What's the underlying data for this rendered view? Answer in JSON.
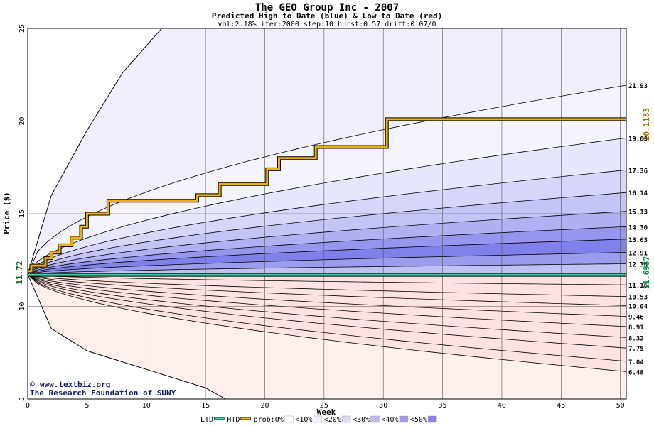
{
  "chart_data": {
    "type": "area",
    "title": "The GEO Group Inc - 2007",
    "subtitle": "Predicted High to Date (blue) &  Low to Date (red)",
    "params": "vol:2.18% iter:2000 step:10 hurst:0.57 drift:0.07/0",
    "xlabel": "Week",
    "ylabel": "Price ($)",
    "xlim": [
      0,
      50.5
    ],
    "ylim": [
      5,
      25
    ],
    "x_ticks": [
      "0",
      "5",
      "10",
      "15",
      "20",
      "25",
      "30",
      "35",
      "40",
      "45",
      "50"
    ],
    "y_ticks": [
      "5",
      "10",
      "15",
      "20",
      "25"
    ],
    "grid": true,
    "start_price": "11.72",
    "htd_final": "20.1183",
    "ltd_final": "11.6987",
    "credit_site": "www.textbiz.org",
    "credit_org": "The Research Foundation of SUNY",
    "upper_bands": [
      {
        "label": "21.93",
        "end": 21.93,
        "k": 0.9,
        "color": "#f4f4ff"
      },
      {
        "label": "19.09",
        "end": 19.09,
        "k": 1.0,
        "color": "#e6e6fc"
      },
      {
        "label": "17.36",
        "end": 17.36,
        "k": 1.0,
        "color": "#d6d6fa"
      },
      {
        "label": "16.14",
        "end": 16.14,
        "k": 1.0,
        "color": "#c4c4f6"
      },
      {
        "label": "15.13",
        "end": 15.13,
        "k": 1.0,
        "color": "#b0b0f2"
      },
      {
        "label": "14.30",
        "end": 14.3,
        "k": 1.0,
        "color": "#9696ee"
      },
      {
        "label": "13.63",
        "end": 13.63,
        "k": 1.0,
        "color": "#8080ea"
      },
      {
        "label": "12.91",
        "end": 12.91,
        "k": 1.0,
        "color": "#9c9cee"
      },
      {
        "label": "12.30",
        "end": 12.3,
        "k": 1.0,
        "color": "#c0c0f4"
      }
    ],
    "lower_bands": [
      {
        "label": "11.16",
        "end": 11.16,
        "k": 1.0,
        "color": "#ffe8e8"
      },
      {
        "label": "10.53",
        "end": 10.53,
        "k": 1.0,
        "color": "#ffd6d6"
      },
      {
        "label": "10.04",
        "end": 10.04,
        "k": 1.0,
        "color": "#ffc4c4"
      },
      {
        "label": "9.46",
        "end": 9.46,
        "k": 1.0,
        "color": "#ffb0b0"
      },
      {
        "label": "8.91",
        "end": 8.91,
        "k": 1.0,
        "color": "#ff9696"
      },
      {
        "label": "8.32",
        "end": 8.32,
        "k": 1.0,
        "color": "#ff8080"
      },
      {
        "label": "7.75",
        "end": 7.75,
        "k": 1.0,
        "color": "#ffa4a4"
      },
      {
        "label": "7.04",
        "end": 7.04,
        "k": 1.0,
        "color": "#ffc6c6"
      },
      {
        "label": "6.48",
        "end": 6.48,
        "k": 1.0,
        "color": "#ffe2e2"
      }
    ],
    "outer_envelope": {
      "upper": [
        [
          0,
          11.72
        ],
        [
          2,
          16.0
        ],
        [
          5,
          19.5
        ],
        [
          8,
          22.6
        ],
        [
          11.3,
          25.0
        ]
      ],
      "lower": [
        [
          0,
          11.72
        ],
        [
          2,
          8.8
        ],
        [
          5,
          7.6
        ],
        [
          10,
          6.6
        ],
        [
          15,
          5.6
        ],
        [
          16.7,
          5.0
        ]
      ]
    },
    "htd_steps": [
      [
        0,
        11.9
      ],
      [
        0.3,
        12.2
      ],
      [
        1.5,
        12.6
      ],
      [
        2,
        12.9
      ],
      [
        2.7,
        13.3
      ],
      [
        3.7,
        13.7
      ],
      [
        4.5,
        14.3
      ],
      [
        5,
        15.0
      ],
      [
        6.8,
        15.7
      ],
      [
        14.3,
        16.0
      ],
      [
        16.2,
        16.6
      ],
      [
        20.2,
        17.4
      ],
      [
        21.2,
        18.0
      ],
      [
        24.3,
        18.6
      ],
      [
        30.3,
        20.1
      ],
      [
        50.5,
        20.1
      ]
    ],
    "ltd_value": 11.7,
    "legend": [
      {
        "label": "LTD",
        "kind": "line",
        "color": "#2fd3a0"
      },
      {
        "label": "HTD",
        "kind": "line",
        "color": "#e8a800"
      },
      {
        "label": "prob:0%",
        "kind": "swatch",
        "color": "#ffffff"
      },
      {
        "label": "<10%",
        "kind": "swatch",
        "color": "#f4f4ff"
      },
      {
        "label": "<20%",
        "kind": "swatch",
        "color": "#dcdcfa"
      },
      {
        "label": "<30%",
        "kind": "swatch",
        "color": "#c0b8f0"
      },
      {
        "label": "<40%",
        "kind": "swatch",
        "color": "#a898e6"
      },
      {
        "label": "<50%",
        "kind": "swatch",
        "color": "#8a80e6"
      }
    ]
  }
}
